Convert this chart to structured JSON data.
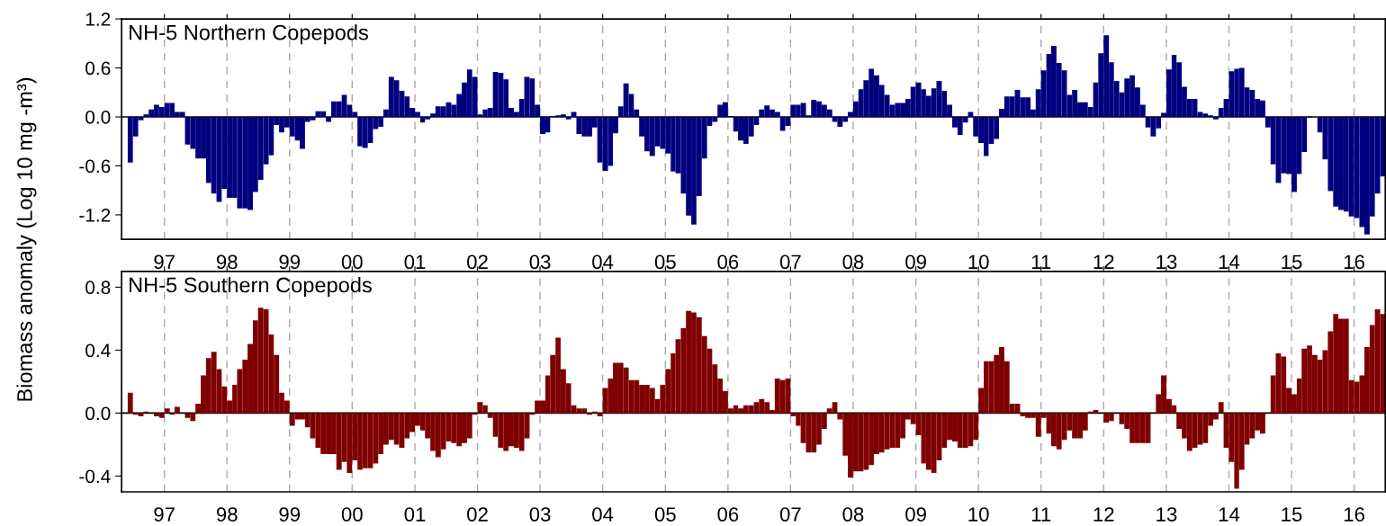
{
  "chart_data": [
    {
      "type": "bar",
      "title": "NH-5 Northern Copepods",
      "ylabel": "Biomass anomaly (Log 10 mg -m³)",
      "grid": "x",
      "xlim": [
        "1996-04-26",
        "2016-07-01"
      ],
      "ylim": [
        -1.5,
        1.2
      ],
      "xticks": [
        {
          "value": "1997-01-01",
          "label": "97"
        },
        {
          "value": "1998-01-01",
          "label": "98"
        },
        {
          "value": "1999-01-01",
          "label": "99"
        },
        {
          "value": "2000-01-01",
          "label": "00"
        },
        {
          "value": "2001-01-01",
          "label": "01"
        },
        {
          "value": "2002-01-01",
          "label": "02"
        },
        {
          "value": "2003-01-01",
          "label": "03"
        },
        {
          "value": "2004-01-01",
          "label": "04"
        },
        {
          "value": "2005-01-01",
          "label": "05"
        },
        {
          "value": "2006-01-01",
          "label": "06"
        },
        {
          "value": "2007-01-01",
          "label": "07"
        },
        {
          "value": "2008-01-01",
          "label": "08"
        },
        {
          "value": "2009-01-01",
          "label": "09"
        },
        {
          "value": "2010-01-01",
          "label": "10"
        },
        {
          "value": "2011-01-01",
          "label": "11"
        },
        {
          "value": "2012-01-01",
          "label": "12"
        },
        {
          "value": "2013-01-01",
          "label": "13"
        },
        {
          "value": "2014-01-01",
          "label": "14"
        },
        {
          "value": "2015-01-01",
          "label": "15"
        },
        {
          "value": "2016-01-01",
          "label": "16"
        }
      ],
      "yticks": [
        {
          "value": 1.2,
          "label": "1.2"
        },
        {
          "value": 0.6,
          "label": "0.6"
        },
        {
          "value": 0,
          "label": "0.0"
        },
        {
          "value": -0.6,
          "label": "-0.6"
        },
        {
          "value": -1.2,
          "label": "-1.2"
        }
      ],
      "ref_lines": [
        {
          "axis": "y",
          "value": 0,
          "color": "#000000"
        }
      ],
      "x": [
        "1996-06",
        "1996-07",
        "1996-08",
        "1996-09",
        "1996-10",
        "1996-11",
        "1996-12",
        "1997-01",
        "1997-02",
        "1997-03",
        "1997-04",
        "1997-05",
        "1997-06",
        "1997-07",
        "1997-08",
        "1997-09",
        "1997-10",
        "1997-11",
        "1997-12",
        "1998-01",
        "1998-02",
        "1998-03",
        "1998-04",
        "1998-05",
        "1998-06",
        "1998-07",
        "1998-08",
        "1998-09",
        "1998-10",
        "1998-11",
        "1998-12",
        "1999-01",
        "1999-02",
        "1999-03",
        "1999-04",
        "1999-05",
        "1999-06",
        "1999-07",
        "1999-08",
        "1999-09",
        "1999-10",
        "1999-11",
        "1999-12",
        "2000-01",
        "2000-02",
        "2000-03",
        "2000-04",
        "2000-05",
        "2000-06",
        "2000-07",
        "2000-08",
        "2000-09",
        "2000-10",
        "2000-11",
        "2000-12",
        "2001-01",
        "2001-02",
        "2001-03",
        "2001-04",
        "2001-05",
        "2001-06",
        "2001-07",
        "2001-08",
        "2001-09",
        "2001-10",
        "2001-11",
        "2001-12",
        "2002-01",
        "2002-02",
        "2002-03",
        "2002-04",
        "2002-05",
        "2002-06",
        "2002-07",
        "2002-08",
        "2002-09",
        "2002-10",
        "2002-11",
        "2002-12",
        "2003-01",
        "2003-02",
        "2003-03",
        "2003-04",
        "2003-05",
        "2003-06",
        "2003-07",
        "2003-08",
        "2003-09",
        "2003-10",
        "2003-11",
        "2003-12",
        "2004-01",
        "2004-02",
        "2004-03",
        "2004-04",
        "2004-05",
        "2004-06",
        "2004-07",
        "2004-08",
        "2004-09",
        "2004-10",
        "2004-11",
        "2004-12",
        "2005-01",
        "2005-02",
        "2005-03",
        "2005-04",
        "2005-05",
        "2005-06",
        "2005-07",
        "2005-08",
        "2005-09",
        "2005-10",
        "2005-11",
        "2005-12",
        "2006-01",
        "2006-02",
        "2006-03",
        "2006-04",
        "2006-05",
        "2006-06",
        "2006-07",
        "2006-08",
        "2006-09",
        "2006-10",
        "2006-11",
        "2006-12",
        "2007-01",
        "2007-02",
        "2007-03",
        "2007-04",
        "2007-05",
        "2007-06",
        "2007-07",
        "2007-08",
        "2007-09",
        "2007-10",
        "2007-11",
        "2007-12",
        "2008-01",
        "2008-02",
        "2008-03",
        "2008-04",
        "2008-05",
        "2008-06",
        "2008-07",
        "2008-08",
        "2008-09",
        "2008-10",
        "2008-11",
        "2008-12",
        "2009-01",
        "2009-02",
        "2009-03",
        "2009-04",
        "2009-05",
        "2009-06",
        "2009-07",
        "2009-08",
        "2009-09",
        "2009-10",
        "2009-11",
        "2009-12",
        "2010-01",
        "2010-02",
        "2010-03",
        "2010-04",
        "2010-05",
        "2010-06",
        "2010-07",
        "2010-08",
        "2010-09",
        "2010-10",
        "2010-11",
        "2010-12",
        "2011-01",
        "2011-02",
        "2011-03",
        "2011-04",
        "2011-05",
        "2011-06",
        "2011-07",
        "2011-08",
        "2011-09",
        "2011-10",
        "2011-11",
        "2011-12",
        "2012-01",
        "2012-02",
        "2012-03",
        "2012-04",
        "2012-05",
        "2012-06",
        "2012-07",
        "2012-08",
        "2012-09",
        "2012-10",
        "2012-11",
        "2012-12",
        "2013-01",
        "2013-02",
        "2013-03",
        "2013-04",
        "2013-05",
        "2013-06",
        "2013-07",
        "2013-08",
        "2013-09",
        "2013-10",
        "2013-11",
        "2013-12",
        "2014-01",
        "2014-02",
        "2014-03",
        "2014-04",
        "2014-05",
        "2014-06",
        "2014-07",
        "2014-08",
        "2014-09",
        "2014-10",
        "2014-11",
        "2014-12",
        "2015-01",
        "2015-02",
        "2015-03",
        "2015-04",
        "2015-05",
        "2015-06",
        "2015-07",
        "2015-08",
        "2015-09",
        "2015-10",
        "2015-11",
        "2015-12",
        "2016-01",
        "2016-02",
        "2016-03",
        "2016-04",
        "2016-05",
        "2016-06"
      ],
      "color": "#00007f",
      "values": [
        -0.56,
        -0.24,
        -0.04,
        0.03,
        0.09,
        0.15,
        0.12,
        0.17,
        0.17,
        0.06,
        0.06,
        -0.34,
        -0.39,
        -0.51,
        -0.51,
        -0.81,
        -0.94,
        -1.04,
        -0.88,
        -0.99,
        -0.99,
        -1.12,
        -1.12,
        -1.14,
        -0.92,
        -0.77,
        -0.58,
        -0.47,
        -0.1,
        -0.19,
        -0.13,
        -0.24,
        -0.29,
        -0.39,
        -0.06,
        -0.04,
        0.07,
        0.07,
        -0.06,
        0.19,
        0.19,
        0.27,
        0.15,
        0.06,
        -0.36,
        -0.38,
        -0.32,
        -0.15,
        -0.12,
        0.09,
        0.49,
        0.45,
        0.32,
        0.25,
        0.11,
        0.06,
        -0.07,
        -0.03,
        0.04,
        0.13,
        0.13,
        0.18,
        0.15,
        0.28,
        0.42,
        0.58,
        0.49,
        0.03,
        0.09,
        0.11,
        0.55,
        0.54,
        0.46,
        0.11,
        0.06,
        0.22,
        0.49,
        0.47,
        0.15,
        -0.21,
        -0.19,
        0.01,
        0.02,
        0.03,
        -0.03,
        0.06,
        -0.21,
        -0.24,
        -0.24,
        -0.13,
        -0.56,
        -0.66,
        -0.6,
        -0.2,
        0.13,
        0.41,
        0.28,
        0.09,
        -0.24,
        -0.42,
        -0.48,
        -0.36,
        -0.39,
        -0.45,
        -0.67,
        -0.69,
        -0.94,
        -1.21,
        -1.32,
        -0.97,
        -0.51,
        -0.11,
        -0.06,
        0.15,
        0.18,
        0.01,
        -0.18,
        -0.29,
        -0.33,
        -0.24,
        -0.1,
        0.09,
        0.14,
        0.09,
        0.06,
        -0.17,
        -0.11,
        0.15,
        0.15,
        0.17,
        0.02,
        0.21,
        0.19,
        0.15,
        0.09,
        -0.06,
        -0.12,
        -0.06,
        0.06,
        0.19,
        0.34,
        0.45,
        0.59,
        0.51,
        0.39,
        0.27,
        0.15,
        0.17,
        0.17,
        0.22,
        0.37,
        0.42,
        0.34,
        0.26,
        0.35,
        0.44,
        0.32,
        0.15,
        -0.13,
        -0.22,
        -0.07,
        0.06,
        -0.24,
        -0.32,
        -0.48,
        -0.33,
        -0.27,
        0.1,
        0.25,
        0.25,
        0.33,
        0.24,
        0.24,
        0.09,
        0.34,
        0.57,
        0.77,
        0.87,
        0.66,
        0.57,
        0.27,
        0.33,
        0.18,
        0.18,
        0.12,
        0.42,
        0.78,
        1.0,
        0.67,
        0.44,
        0.3,
        0.47,
        0.51,
        0.36,
        0.15,
        -0.13,
        -0.24,
        -0.14,
        0.05,
        0.58,
        0.76,
        0.67,
        0.37,
        0.22,
        0.22,
        0.06,
        0.04,
        0.02,
        -0.03,
        0.11,
        0.22,
        0.56,
        0.59,
        0.6,
        0.36,
        0.33,
        0.22,
        0.2,
        -0.13,
        -0.58,
        -0.81,
        -0.69,
        -0.7,
        -0.92,
        -0.7,
        -0.43,
        -0.01,
        0.0,
        -0.19,
        -0.52,
        -0.91,
        -1.1,
        -1.14,
        -1.16,
        -1.22,
        -1.24,
        -1.35,
        -1.44,
        -1.22,
        -0.94,
        -0.73
      ]
    },
    {
      "type": "bar",
      "title": "NH-5 Southern Copepods",
      "grid": "x",
      "xlim": [
        "1996-04-26",
        "2016-07-01"
      ],
      "ylim": [
        -0.5,
        0.9
      ],
      "xticks": [
        {
          "value": "1997-01-01",
          "label": "97"
        },
        {
          "value": "1998-01-01",
          "label": "98"
        },
        {
          "value": "1999-01-01",
          "label": "99"
        },
        {
          "value": "2000-01-01",
          "label": "00"
        },
        {
          "value": "2001-01-01",
          "label": "01"
        },
        {
          "value": "2002-01-01",
          "label": "02"
        },
        {
          "value": "2003-01-01",
          "label": "03"
        },
        {
          "value": "2004-01-01",
          "label": "04"
        },
        {
          "value": "2005-01-01",
          "label": "05"
        },
        {
          "value": "2006-01-01",
          "label": "06"
        },
        {
          "value": "2007-01-01",
          "label": "07"
        },
        {
          "value": "2008-01-01",
          "label": "08"
        },
        {
          "value": "2009-01-01",
          "label": "09"
        },
        {
          "value": "2010-01-01",
          "label": "10"
        },
        {
          "value": "2011-01-01",
          "label": "11"
        },
        {
          "value": "2012-01-01",
          "label": "12"
        },
        {
          "value": "2013-01-01",
          "label": "13"
        },
        {
          "value": "2014-01-01",
          "label": "14"
        },
        {
          "value": "2015-01-01",
          "label": "15"
        },
        {
          "value": "2016-01-01",
          "label": "16"
        }
      ],
      "yticks": [
        {
          "value": 0.8,
          "label": "0.8"
        },
        {
          "value": 0.4,
          "label": "0.4"
        },
        {
          "value": 0,
          "label": "0.0"
        },
        {
          "value": -0.4,
          "label": "-0.4"
        }
      ],
      "ref_lines": [
        {
          "axis": "y",
          "value": 0,
          "color": "#000000"
        }
      ],
      "x": [
        "1996-06",
        "1996-07",
        "1996-08",
        "1996-09",
        "1996-10",
        "1996-11",
        "1996-12",
        "1997-01",
        "1997-02",
        "1997-03",
        "1997-04",
        "1997-05",
        "1997-06",
        "1997-07",
        "1997-08",
        "1997-09",
        "1997-10",
        "1997-11",
        "1997-12",
        "1998-01",
        "1998-02",
        "1998-03",
        "1998-04",
        "1998-05",
        "1998-06",
        "1998-07",
        "1998-08",
        "1998-09",
        "1998-10",
        "1998-11",
        "1998-12",
        "1999-01",
        "1999-02",
        "1999-03",
        "1999-04",
        "1999-05",
        "1999-06",
        "1999-07",
        "1999-08",
        "1999-09",
        "1999-10",
        "1999-11",
        "1999-12",
        "2000-01",
        "2000-02",
        "2000-03",
        "2000-04",
        "2000-05",
        "2000-06",
        "2000-07",
        "2000-08",
        "2000-09",
        "2000-10",
        "2000-11",
        "2000-12",
        "2001-01",
        "2001-02",
        "2001-03",
        "2001-04",
        "2001-05",
        "2001-06",
        "2001-07",
        "2001-08",
        "2001-09",
        "2001-10",
        "2001-11",
        "2001-12",
        "2002-01",
        "2002-02",
        "2002-03",
        "2002-04",
        "2002-05",
        "2002-06",
        "2002-07",
        "2002-08",
        "2002-09",
        "2002-10",
        "2002-11",
        "2002-12",
        "2003-01",
        "2003-02",
        "2003-03",
        "2003-04",
        "2003-05",
        "2003-06",
        "2003-07",
        "2003-08",
        "2003-09",
        "2003-10",
        "2003-11",
        "2003-12",
        "2004-01",
        "2004-02",
        "2004-03",
        "2004-04",
        "2004-05",
        "2004-06",
        "2004-07",
        "2004-08",
        "2004-09",
        "2004-10",
        "2004-11",
        "2004-12",
        "2005-01",
        "2005-02",
        "2005-03",
        "2005-04",
        "2005-05",
        "2005-06",
        "2005-07",
        "2005-08",
        "2005-09",
        "2005-10",
        "2005-11",
        "2005-12",
        "2006-01",
        "2006-02",
        "2006-03",
        "2006-04",
        "2006-05",
        "2006-06",
        "2006-07",
        "2006-08",
        "2006-09",
        "2006-10",
        "2006-11",
        "2006-12",
        "2007-01",
        "2007-02",
        "2007-03",
        "2007-04",
        "2007-05",
        "2007-06",
        "2007-07",
        "2007-08",
        "2007-09",
        "2007-10",
        "2007-11",
        "2007-12",
        "2008-01",
        "2008-02",
        "2008-03",
        "2008-04",
        "2008-05",
        "2008-06",
        "2008-07",
        "2008-08",
        "2008-09",
        "2008-10",
        "2008-11",
        "2008-12",
        "2009-01",
        "2009-02",
        "2009-03",
        "2009-04",
        "2009-05",
        "2009-06",
        "2009-07",
        "2009-08",
        "2009-09",
        "2009-10",
        "2009-11",
        "2009-12",
        "2010-01",
        "2010-02",
        "2010-03",
        "2010-04",
        "2010-05",
        "2010-06",
        "2010-07",
        "2010-08",
        "2010-09",
        "2010-10",
        "2010-11",
        "2010-12",
        "2011-01",
        "2011-02",
        "2011-03",
        "2011-04",
        "2011-05",
        "2011-06",
        "2011-07",
        "2011-08",
        "2011-09",
        "2011-10",
        "2011-11",
        "2011-12",
        "2012-01",
        "2012-02",
        "2012-03",
        "2012-04",
        "2012-05",
        "2012-06",
        "2012-07",
        "2012-08",
        "2012-09",
        "2012-10",
        "2012-11",
        "2012-12",
        "2013-01",
        "2013-02",
        "2013-03",
        "2013-04",
        "2013-05",
        "2013-06",
        "2013-07",
        "2013-08",
        "2013-09",
        "2013-10",
        "2013-11",
        "2013-12",
        "2014-01",
        "2014-02",
        "2014-03",
        "2014-04",
        "2014-05",
        "2014-06",
        "2014-07",
        "2014-08",
        "2014-09",
        "2014-10",
        "2014-11",
        "2014-12",
        "2015-01",
        "2015-02",
        "2015-03",
        "2015-04",
        "2015-05",
        "2015-06",
        "2015-07",
        "2015-08",
        "2015-09",
        "2015-10",
        "2015-11",
        "2015-12",
        "2016-01",
        "2016-02",
        "2016-03",
        "2016-04",
        "2016-05",
        "2016-06"
      ],
      "color": "#7f0000",
      "values": [
        0.13,
        -0.01,
        -0.02,
        0.01,
        0.0,
        -0.02,
        -0.03,
        0.03,
        -0.01,
        0.04,
        0.0,
        -0.03,
        -0.05,
        0.06,
        0.24,
        0.35,
        0.39,
        0.28,
        0.17,
        0.08,
        0.18,
        0.28,
        0.34,
        0.44,
        0.59,
        0.67,
        0.66,
        0.5,
        0.37,
        0.13,
        0.08,
        -0.08,
        -0.04,
        -0.04,
        -0.09,
        -0.16,
        -0.22,
        -0.26,
        -0.26,
        -0.26,
        -0.36,
        -0.31,
        -0.38,
        -0.3,
        -0.36,
        -0.35,
        -0.35,
        -0.32,
        -0.26,
        -0.2,
        -0.17,
        -0.2,
        -0.22,
        -0.16,
        -0.12,
        -0.08,
        -0.11,
        -0.16,
        -0.24,
        -0.28,
        -0.23,
        -0.18,
        -0.19,
        -0.21,
        -0.19,
        -0.16,
        -0.01,
        0.07,
        0.05,
        -0.03,
        -0.15,
        -0.22,
        -0.24,
        -0.21,
        -0.22,
        -0.24,
        -0.16,
        -0.01,
        0.08,
        0.08,
        0.24,
        0.37,
        0.48,
        0.28,
        0.19,
        0.05,
        0.03,
        0.03,
        -0.01,
        0.01,
        -0.02,
        0.16,
        0.22,
        0.32,
        0.32,
        0.29,
        0.21,
        0.21,
        0.18,
        0.18,
        0.16,
        0.09,
        0.18,
        0.28,
        0.38,
        0.47,
        0.54,
        0.65,
        0.64,
        0.61,
        0.49,
        0.41,
        0.31,
        0.22,
        0.14,
        0.03,
        0.05,
        0.03,
        0.05,
        0.05,
        0.07,
        0.09,
        0.07,
        0.02,
        0.22,
        0.21,
        0.22,
        -0.02,
        -0.08,
        -0.19,
        -0.25,
        -0.25,
        -0.2,
        -0.1,
        0.03,
        0.07,
        -0.04,
        -0.27,
        -0.41,
        -0.37,
        -0.37,
        -0.36,
        -0.33,
        -0.26,
        -0.25,
        -0.23,
        -0.22,
        -0.22,
        -0.16,
        -0.04,
        -0.07,
        -0.14,
        -0.32,
        -0.36,
        -0.38,
        -0.3,
        -0.22,
        -0.17,
        -0.18,
        -0.22,
        -0.22,
        -0.21,
        -0.17,
        0.16,
        0.33,
        0.33,
        0.37,
        0.42,
        0.33,
        0.06,
        0.06,
        -0.02,
        -0.03,
        -0.03,
        -0.15,
        -0.03,
        -0.13,
        -0.21,
        -0.23,
        -0.17,
        -0.11,
        -0.16,
        -0.16,
        -0.11,
        0.01,
        0.02,
        0.0,
        -0.06,
        -0.05,
        0.0,
        -0.07,
        -0.1,
        -0.19,
        -0.19,
        -0.19,
        -0.19,
        0.0,
        0.12,
        0.24,
        0.09,
        0.05,
        -0.1,
        -0.16,
        -0.24,
        -0.22,
        -0.2,
        -0.19,
        -0.08,
        -0.04,
        0.07,
        -0.22,
        -0.31,
        -0.48,
        -0.36,
        -0.2,
        -0.16,
        -0.11,
        -0.13,
        0.0,
        0.24,
        0.38,
        0.36,
        0.16,
        0.12,
        0.22,
        0.41,
        0.43,
        0.37,
        0.34,
        0.4,
        0.52,
        0.63,
        0.6,
        0.6,
        0.21,
        0.2,
        0.24,
        0.42,
        0.56,
        0.66,
        0.63
      ]
    }
  ]
}
